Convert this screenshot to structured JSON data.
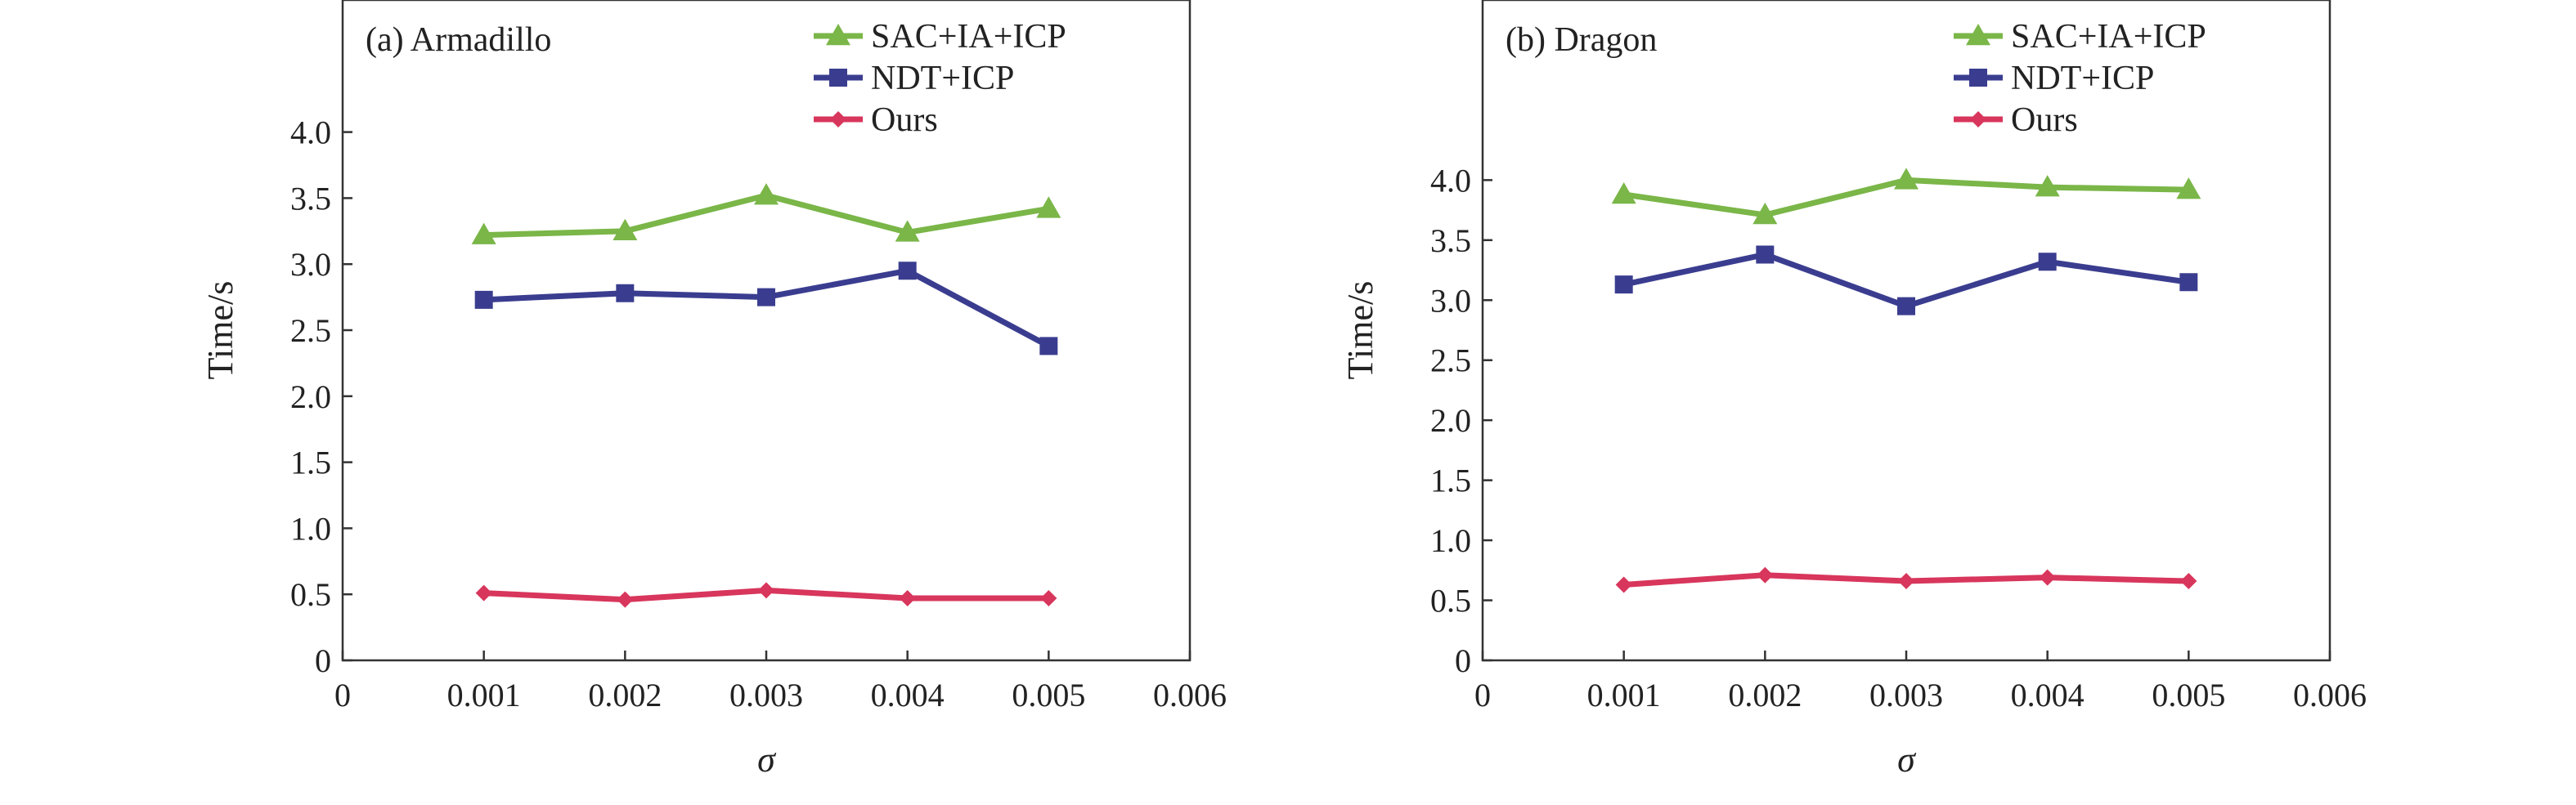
{
  "chart_data": [
    {
      "type": "line",
      "panel_label": "(a) Armadillo",
      "xlabel": "σ",
      "ylabel": "Time/s",
      "x": [
        0.001,
        0.002,
        0.003,
        0.004,
        0.005
      ],
      "xlim": [
        0,
        0.006
      ],
      "xticks": [
        "0",
        "0.001",
        "0.002",
        "0.003",
        "0.004",
        "0.005",
        "0.006"
      ],
      "ylim": [
        0,
        5.0
      ],
      "yticks": [
        "0",
        "0.5",
        "1.0",
        "1.5",
        "2.0",
        "2.5",
        "3.0",
        "3.5",
        "4.0"
      ],
      "legend_position": "top-right",
      "grid": false,
      "series": [
        {
          "name": "SAC+IA+ICP",
          "values": [
            3.22,
            3.25,
            3.52,
            3.24,
            3.42
          ],
          "color": "#7ab648",
          "marker": "triangle"
        },
        {
          "name": "NDT+ICP",
          "values": [
            2.73,
            2.78,
            2.75,
            2.95,
            2.38
          ],
          "color": "#3a3d8f",
          "marker": "square"
        },
        {
          "name": "Ours",
          "values": [
            0.51,
            0.46,
            0.53,
            0.47,
            0.47
          ],
          "color": "#d8365c",
          "marker": "diamond"
        }
      ]
    },
    {
      "type": "line",
      "panel_label": "(b) Dragon",
      "xlabel": "σ",
      "ylabel": "Time/s",
      "x": [
        0.001,
        0.002,
        0.003,
        0.004,
        0.005
      ],
      "xlim": [
        0,
        0.006
      ],
      "xticks": [
        "0",
        "0.001",
        "0.002",
        "0.003",
        "0.004",
        "0.005",
        "0.006"
      ],
      "ylim": [
        0,
        5.5
      ],
      "yticks": [
        "0",
        "0.5",
        "1.0",
        "1.5",
        "2.0",
        "2.5",
        "3.0",
        "3.5",
        "4.0"
      ],
      "legend_position": "top-right",
      "grid": false,
      "series": [
        {
          "name": "SAC+IA+ICP",
          "values": [
            3.88,
            3.71,
            4.0,
            3.94,
            3.92
          ],
          "color": "#7ab648",
          "marker": "triangle"
        },
        {
          "name": "NDT+ICP",
          "values": [
            3.13,
            3.38,
            2.95,
            3.32,
            3.15
          ],
          "color": "#3a3d8f",
          "marker": "square"
        },
        {
          "name": "Ours",
          "values": [
            0.63,
            0.71,
            0.66,
            0.69,
            0.66
          ],
          "color": "#d8365c",
          "marker": "diamond"
        }
      ]
    }
  ]
}
